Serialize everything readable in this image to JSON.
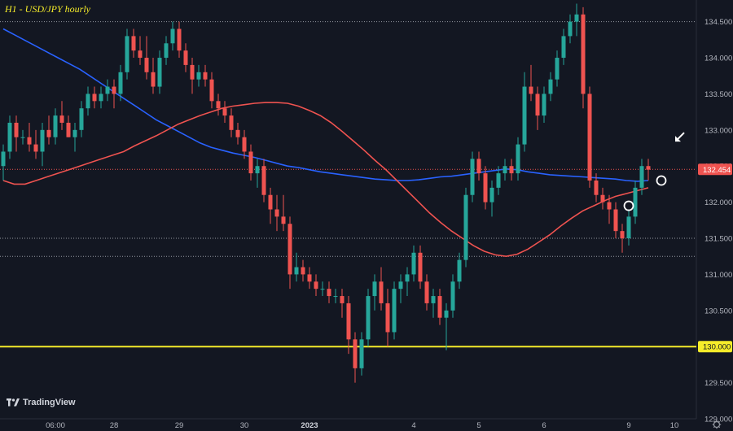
{
  "title": "H1 - USD/JPY hourly",
  "logo_text": "TradingView",
  "colors": {
    "background": "#131722",
    "up": "#26a69a",
    "down": "#ef5350",
    "ma_fast": "#ef5350",
    "ma_slow": "#2962ff",
    "support": "#f5ec2a",
    "annotation": "#ffffff"
  },
  "icons": [
    "tradingview-logo-icon",
    "settings-gear-icon",
    "annotation-arrow-icon"
  ],
  "chart_data": {
    "type": "candlestick",
    "y_axis": {
      "range": [
        129.0,
        134.8
      ],
      "ticks": [
        "129.000",
        "129.500",
        "130.000",
        "130.500",
        "131.000",
        "131.500",
        "132.000",
        "132.500",
        "133.000",
        "133.500",
        "134.000",
        "134.500"
      ]
    },
    "x_axis": {
      "ticks": [
        {
          "label": "06:00",
          "index": 8
        },
        {
          "label": "28",
          "index": 17
        },
        {
          "label": "29",
          "index": 27
        },
        {
          "label": "30",
          "index": 37
        },
        {
          "label": "2023",
          "index": 47,
          "bold": true
        },
        {
          "label": "4",
          "index": 63
        },
        {
          "label": "5",
          "index": 73
        },
        {
          "label": "6",
          "index": 83
        },
        {
          "label": "9",
          "index": 96
        },
        {
          "label": "10",
          "index": 103
        }
      ]
    },
    "candles_ohlc": [
      [
        132.5,
        132.8,
        132.3,
        132.7
      ],
      [
        132.7,
        133.2,
        132.6,
        133.1
      ],
      [
        133.1,
        133.2,
        132.7,
        132.9
      ],
      [
        132.9,
        133.0,
        132.8,
        132.9
      ],
      [
        132.9,
        133.1,
        132.7,
        132.8
      ],
      [
        132.8,
        133.0,
        132.6,
        132.7
      ],
      [
        132.7,
        133.1,
        132.5,
        133.0
      ],
      [
        133.0,
        133.2,
        132.8,
        132.9
      ],
      [
        132.9,
        133.3,
        132.8,
        133.2
      ],
      [
        133.2,
        133.4,
        133.0,
        133.1
      ],
      [
        133.1,
        133.2,
        132.9,
        132.9
      ],
      [
        132.9,
        133.1,
        132.7,
        133.0
      ],
      [
        133.0,
        133.4,
        132.9,
        133.3
      ],
      [
        133.3,
        133.6,
        133.2,
        133.5
      ],
      [
        133.5,
        133.6,
        133.3,
        133.4
      ],
      [
        133.4,
        133.6,
        133.3,
        133.5
      ],
      [
        133.5,
        133.7,
        133.4,
        133.6
      ],
      [
        133.6,
        133.7,
        133.3,
        133.5
      ],
      [
        133.5,
        133.9,
        133.4,
        133.8
      ],
      [
        133.8,
        134.4,
        133.7,
        134.3
      ],
      [
        134.3,
        134.4,
        134.0,
        134.1
      ],
      [
        134.1,
        134.3,
        133.9,
        134.0
      ],
      [
        134.0,
        134.3,
        133.7,
        133.8
      ],
      [
        133.8,
        134.0,
        133.5,
        133.6
      ],
      [
        133.6,
        134.1,
        133.5,
        134.0
      ],
      [
        134.0,
        134.3,
        133.9,
        134.2
      ],
      [
        134.2,
        134.5,
        134.1,
        134.4
      ],
      [
        134.4,
        134.5,
        134.0,
        134.1
      ],
      [
        134.1,
        134.2,
        133.8,
        133.9
      ],
      [
        133.9,
        134.0,
        133.5,
        133.7
      ],
      [
        133.7,
        133.9,
        133.6,
        133.8
      ],
      [
        133.8,
        133.9,
        133.6,
        133.7
      ],
      [
        133.7,
        133.8,
        133.3,
        133.4
      ],
      [
        133.4,
        133.5,
        133.2,
        133.3
      ],
      [
        133.3,
        133.4,
        133.1,
        133.2
      ],
      [
        133.2,
        133.3,
        132.9,
        133.0
      ],
      [
        133.0,
        133.1,
        132.8,
        132.9
      ],
      [
        132.9,
        133.0,
        132.6,
        132.7
      ],
      [
        132.7,
        132.8,
        132.3,
        132.4
      ],
      [
        132.4,
        132.6,
        132.2,
        132.5
      ],
      [
        132.5,
        132.6,
        132.0,
        132.1
      ],
      [
        132.1,
        132.2,
        131.7,
        131.9
      ],
      [
        131.9,
        132.1,
        131.6,
        131.8
      ],
      [
        131.8,
        132.1,
        131.6,
        131.7
      ],
      [
        131.7,
        131.8,
        130.8,
        131.0
      ],
      [
        131.0,
        131.3,
        130.9,
        131.1
      ],
      [
        131.1,
        131.2,
        130.9,
        131.0
      ],
      [
        131.0,
        131.1,
        130.8,
        130.9
      ],
      [
        130.9,
        131.0,
        130.7,
        130.8
      ],
      [
        130.8,
        130.9,
        130.7,
        130.8
      ],
      [
        130.8,
        130.9,
        130.6,
        130.7
      ],
      [
        130.7,
        130.8,
        130.6,
        130.7
      ],
      [
        130.7,
        130.8,
        130.4,
        130.6
      ],
      [
        130.6,
        130.7,
        129.9,
        130.1
      ],
      [
        130.1,
        130.2,
        129.5,
        129.7
      ],
      [
        129.7,
        130.2,
        129.6,
        130.1
      ],
      [
        130.1,
        130.8,
        130.0,
        130.7
      ],
      [
        130.7,
        131.0,
        130.5,
        130.9
      ],
      [
        130.9,
        131.1,
        130.5,
        130.6
      ],
      [
        130.6,
        130.8,
        130.0,
        130.2
      ],
      [
        130.2,
        130.9,
        130.1,
        130.8
      ],
      [
        130.8,
        131.0,
        130.6,
        130.9
      ],
      [
        130.9,
        131.1,
        130.7,
        131.0
      ],
      [
        131.0,
        131.4,
        130.9,
        131.3
      ],
      [
        131.3,
        131.4,
        130.8,
        130.9
      ],
      [
        130.9,
        131.0,
        130.5,
        130.6
      ],
      [
        130.6,
        130.8,
        130.4,
        130.7
      ],
      [
        130.7,
        130.8,
        130.3,
        130.4
      ],
      [
        130.4,
        130.6,
        129.95,
        130.5
      ],
      [
        130.5,
        131.0,
        130.4,
        130.9
      ],
      [
        130.9,
        131.3,
        130.8,
        131.2
      ],
      [
        131.2,
        132.2,
        131.1,
        132.1
      ],
      [
        132.1,
        132.7,
        132.0,
        132.6
      ],
      [
        132.6,
        132.7,
        132.3,
        132.4
      ],
      [
        132.4,
        132.5,
        131.9,
        132.0
      ],
      [
        132.0,
        132.3,
        131.8,
        132.2
      ],
      [
        132.2,
        132.5,
        132.1,
        132.4
      ],
      [
        132.4,
        132.6,
        132.3,
        132.5
      ],
      [
        132.5,
        132.6,
        132.3,
        132.4
      ],
      [
        132.4,
        132.9,
        132.3,
        132.8
      ],
      [
        132.8,
        133.8,
        132.7,
        133.6
      ],
      [
        133.6,
        133.9,
        133.4,
        133.5
      ],
      [
        133.5,
        133.6,
        133.0,
        133.2
      ],
      [
        133.2,
        133.6,
        133.1,
        133.5
      ],
      [
        133.5,
        133.8,
        133.4,
        133.7
      ],
      [
        133.7,
        134.1,
        133.6,
        134.0
      ],
      [
        134.0,
        134.4,
        133.9,
        134.3
      ],
      [
        134.3,
        134.6,
        134.2,
        134.5
      ],
      [
        134.5,
        134.75,
        134.3,
        134.6
      ],
      [
        134.6,
        134.7,
        133.3,
        133.5
      ],
      [
        133.5,
        133.6,
        132.2,
        132.3
      ],
      [
        132.3,
        132.4,
        132.0,
        132.1
      ],
      [
        132.1,
        132.2,
        131.9,
        132.0
      ],
      [
        132.0,
        132.1,
        131.7,
        131.9
      ],
      [
        131.9,
        132.0,
        131.5,
        131.6
      ],
      [
        131.6,
        131.7,
        131.3,
        131.5
      ],
      [
        131.5,
        131.9,
        131.4,
        131.8
      ],
      [
        131.8,
        132.3,
        131.7,
        132.2
      ],
      [
        132.2,
        132.6,
        132.1,
        132.5
      ],
      [
        132.5,
        132.6,
        132.3,
        132.45
      ]
    ],
    "ma_fast": [
      132.3,
      132.25,
      132.25,
      132.3,
      132.35,
      132.4,
      132.45,
      132.5,
      132.55,
      132.6,
      132.65,
      132.7,
      132.78,
      132.85,
      132.92,
      133.0,
      133.08,
      133.14,
      133.2,
      133.25,
      133.3,
      133.33,
      133.35,
      133.37,
      133.38,
      133.38,
      133.37,
      133.33,
      133.27,
      133.2,
      133.1,
      132.98,
      132.85,
      132.72,
      132.58,
      132.45,
      132.3,
      132.15,
      132.0,
      131.85,
      131.72,
      131.6,
      131.5,
      131.4,
      131.32,
      131.27,
      131.25,
      131.28,
      131.35,
      131.45,
      131.55,
      131.67,
      131.78,
      131.88,
      131.95,
      132.02,
      132.08,
      132.12,
      132.16,
      132.2
    ],
    "ma_slow": [
      134.4,
      134.32,
      134.24,
      134.16,
      134.08,
      134.0,
      133.92,
      133.84,
      133.74,
      133.64,
      133.54,
      133.44,
      133.34,
      133.24,
      133.14,
      133.06,
      132.98,
      132.9,
      132.82,
      132.76,
      132.72,
      132.68,
      132.65,
      132.62,
      132.58,
      132.54,
      132.5,
      132.48,
      132.45,
      132.42,
      132.4,
      132.38,
      132.36,
      132.34,
      132.32,
      132.31,
      132.3,
      132.3,
      132.31,
      132.33,
      132.35,
      132.36,
      132.38,
      132.4,
      132.42,
      132.44,
      132.46,
      132.45,
      132.42,
      132.4,
      132.38,
      132.37,
      132.36,
      132.35,
      132.34,
      132.33,
      132.32,
      132.3,
      132.29,
      132.3
    ],
    "reference_lines": [
      {
        "price": 134.5,
        "style": "dotted",
        "label": ""
      },
      {
        "price": 132.454,
        "style": "dotted-red",
        "label": "132.454"
      },
      {
        "price": 131.5,
        "style": "dotted",
        "label": ""
      },
      {
        "price": 131.25,
        "style": "dotted",
        "label": ""
      },
      {
        "price": 130.0,
        "style": "solid-yellow",
        "label": "130.000"
      }
    ],
    "markers": [
      {
        "type": "circle",
        "index": 96,
        "price": 131.95
      },
      {
        "type": "circle",
        "index": 101,
        "price": 132.3
      },
      {
        "type": "arrow",
        "index": 103,
        "price": 132.85
      }
    ]
  }
}
